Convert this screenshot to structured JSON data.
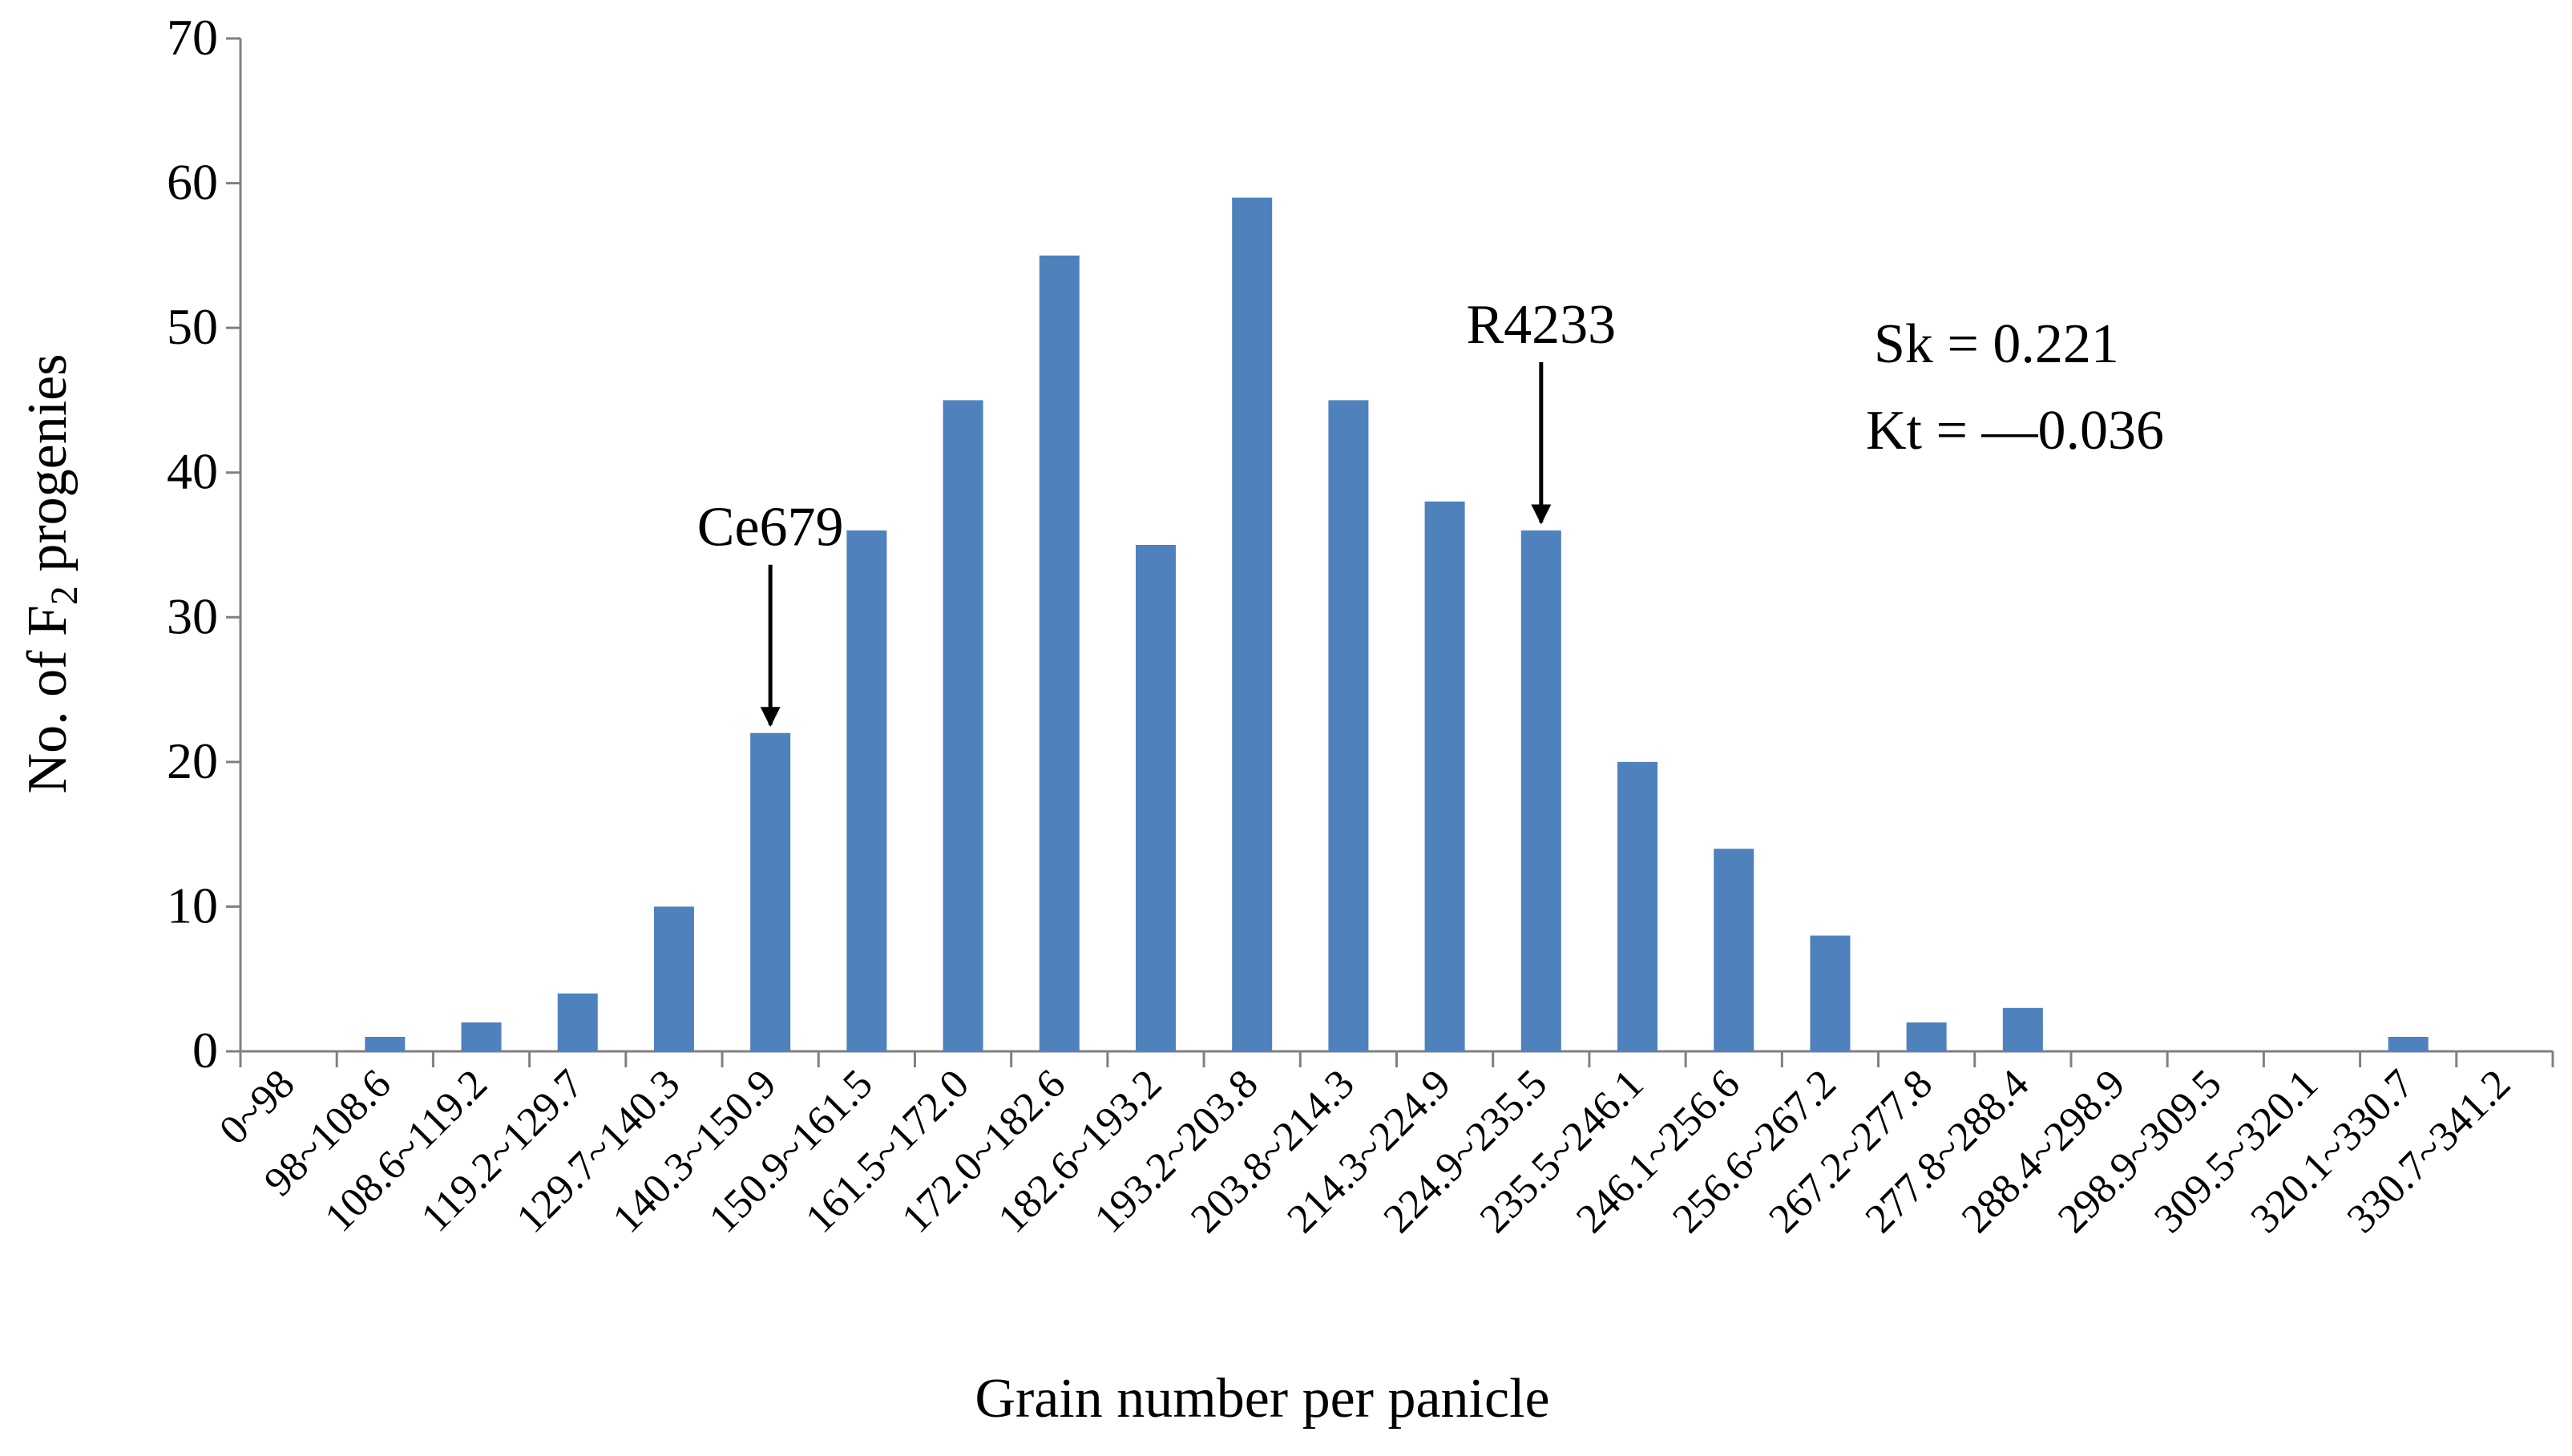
{
  "chart_data": {
    "type": "bar",
    "title": "",
    "xlabel": "Grain number per panicle",
    "ylabel": {
      "prefix": "No. of F",
      "subscript": "2",
      "suffix": " progenies"
    },
    "ylim": [
      0,
      70
    ],
    "yticks": [
      0,
      10,
      20,
      30,
      40,
      50,
      60,
      70
    ],
    "categories": [
      "0~98",
      "98~108.6",
      "108.6~119.2",
      "119.2~129.7",
      "129.7~140.3",
      "140.3~150.9",
      "150.9~161.5",
      "161.5~172.0",
      "172.0~182.6",
      "182.6~193.2",
      "193.2~203.8",
      "203.8~214.3",
      "214.3~224.9",
      "224.9~235.5",
      "235.5~246.1",
      "246.1~256.6",
      "256.6~267.2",
      "267.2~277.8",
      "277.8~288.4",
      "288.4~298.9",
      "298.9~309.5",
      "309.5~320.1",
      "320.1~330.7",
      "330.7~341.2"
    ],
    "values": [
      0,
      1,
      2,
      4,
      10,
      22,
      36,
      45,
      55,
      35,
      59,
      45,
      38,
      36,
      20,
      14,
      8,
      2,
      3,
      0,
      0,
      0,
      1,
      0
    ],
    "bar_color": "#4f81bd",
    "annotations": [
      {
        "label": "Ce679",
        "category_index": 5
      },
      {
        "label": "R4233",
        "category_index": 13
      }
    ],
    "stats": {
      "sk": "Sk = 0.221",
      "kt": "Kt = —0.036"
    }
  }
}
